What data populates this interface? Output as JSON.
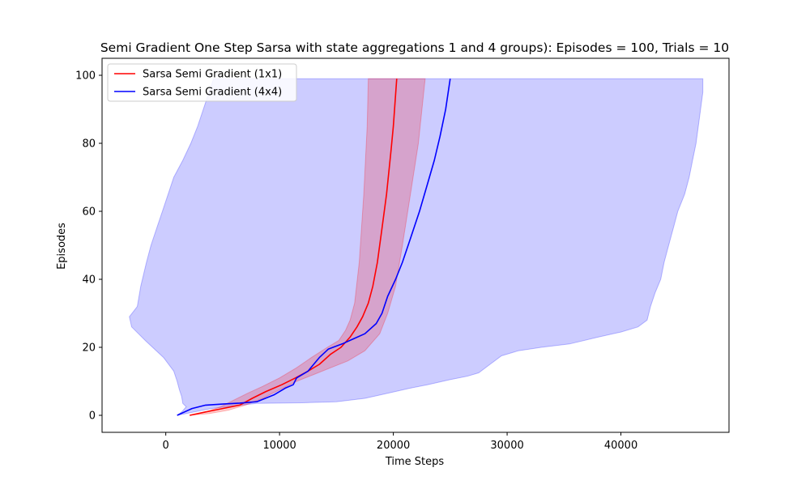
{
  "chart_data": {
    "type": "line",
    "title": "Semi Gradient One Step Sarsa with state aggregations 1 and 4 groups): Episodes = 100, Trials = 10",
    "xlabel": "Time Steps",
    "ylabel": "Episodes",
    "xlim": [
      -5600,
      49500
    ],
    "ylim": [
      -5,
      105
    ],
    "xticks": [
      0,
      10000,
      20000,
      30000,
      40000
    ],
    "yticks": [
      0,
      20,
      40,
      60,
      80,
      100
    ],
    "grid": false,
    "legend_position": "upper-left",
    "series": [
      {
        "name": "Sarsa Semi Gradient (1x1)",
        "color": "#ff0000",
        "band_color": "#ff0000",
        "line": [
          [
            2100,
            0
          ],
          [
            3500,
            1
          ],
          [
            5000,
            2
          ],
          [
            6500,
            3
          ],
          [
            7600,
            5
          ],
          [
            8800,
            7
          ],
          [
            10200,
            9
          ],
          [
            11400,
            11
          ],
          [
            12500,
            13
          ],
          [
            13500,
            15
          ],
          [
            14500,
            18
          ],
          [
            15400,
            20
          ],
          [
            16200,
            23
          ],
          [
            16800,
            26
          ],
          [
            17300,
            29
          ],
          [
            17800,
            33
          ],
          [
            18200,
            38
          ],
          [
            18600,
            45
          ],
          [
            19000,
            55
          ],
          [
            19400,
            65
          ],
          [
            19800,
            78
          ],
          [
            20000,
            85
          ],
          [
            20300,
            99
          ]
        ],
        "band_upper": [
          [
            2100,
            0
          ],
          [
            3500,
            1
          ],
          [
            4800,
            2.5
          ],
          [
            6000,
            4.5
          ],
          [
            7200,
            6.5
          ],
          [
            8500,
            8.5
          ],
          [
            10000,
            11
          ],
          [
            11500,
            14
          ],
          [
            12800,
            17
          ],
          [
            14200,
            20
          ],
          [
            15200,
            22
          ],
          [
            15800,
            25
          ],
          [
            16200,
            28
          ],
          [
            16600,
            33
          ],
          [
            17000,
            45
          ],
          [
            17400,
            65
          ],
          [
            17700,
            85
          ],
          [
            17800,
            99
          ]
        ],
        "band_lower": [
          [
            2100,
            0
          ],
          [
            3800,
            0.5
          ],
          [
            5500,
            1.5
          ],
          [
            7000,
            3
          ],
          [
            8500,
            5
          ],
          [
            10000,
            7.5
          ],
          [
            11500,
            10
          ],
          [
            13000,
            12
          ],
          [
            14500,
            14
          ],
          [
            16000,
            16
          ],
          [
            17500,
            19
          ],
          [
            18800,
            24
          ],
          [
            19500,
            30
          ],
          [
            20200,
            38
          ],
          [
            20800,
            50
          ],
          [
            21500,
            65
          ],
          [
            22200,
            80
          ],
          [
            22800,
            99
          ]
        ]
      },
      {
        "name": "Sarsa Semi Gradient (4x4)",
        "color": "#0000ff",
        "band_color": "#0000ff",
        "line": [
          [
            1000,
            0
          ],
          [
            2300,
            2
          ],
          [
            3500,
            3
          ],
          [
            5000,
            3.3
          ],
          [
            6500,
            3.6
          ],
          [
            8000,
            4
          ],
          [
            9500,
            6
          ],
          [
            10500,
            8
          ],
          [
            11200,
            9
          ],
          [
            11500,
            11
          ],
          [
            12500,
            13
          ],
          [
            13500,
            17
          ],
          [
            14300,
            19.5
          ],
          [
            15500,
            21
          ],
          [
            16500,
            22.5
          ],
          [
            17500,
            24
          ],
          [
            18500,
            27
          ],
          [
            19000,
            30
          ],
          [
            19500,
            35
          ],
          [
            20200,
            40
          ],
          [
            20800,
            45
          ],
          [
            21500,
            52
          ],
          [
            22300,
            60
          ],
          [
            23000,
            68
          ],
          [
            23600,
            75
          ],
          [
            24100,
            82
          ],
          [
            24600,
            90
          ],
          [
            25000,
            99
          ]
        ],
        "band_upper": [
          [
            1000,
            0
          ],
          [
            1400,
            1
          ],
          [
            1800,
            2.5
          ],
          [
            1500,
            3.5
          ],
          [
            1400,
            5.5
          ],
          [
            1200,
            7.5
          ],
          [
            1000,
            10
          ],
          [
            700,
            13
          ],
          [
            -200,
            17
          ],
          [
            -1800,
            22
          ],
          [
            -3000,
            26
          ],
          [
            -3200,
            29
          ],
          [
            -2500,
            32
          ],
          [
            -2200,
            38
          ],
          [
            -1700,
            45
          ],
          [
            -1300,
            50
          ],
          [
            -800,
            55
          ],
          [
            -300,
            60
          ],
          [
            200,
            65
          ],
          [
            700,
            70
          ],
          [
            1500,
            75
          ],
          [
            2200,
            80
          ],
          [
            2800,
            85
          ],
          [
            3300,
            90
          ],
          [
            3800,
            95
          ],
          [
            4200,
            99
          ]
        ],
        "band_lower": [
          [
            1000,
            0
          ],
          [
            4000,
            2
          ],
          [
            8000,
            3.5
          ],
          [
            12000,
            3.7
          ],
          [
            15000,
            4
          ],
          [
            17500,
            5
          ],
          [
            19500,
            6.5
          ],
          [
            21500,
            8
          ],
          [
            23000,
            9
          ],
          [
            25000,
            10.5
          ],
          [
            26500,
            11.5
          ],
          [
            27500,
            12.5
          ],
          [
            28500,
            15
          ],
          [
            29500,
            17.5
          ],
          [
            31000,
            19
          ],
          [
            33000,
            20
          ],
          [
            35500,
            21
          ],
          [
            38000,
            23
          ],
          [
            40000,
            24.5
          ],
          [
            41500,
            26
          ],
          [
            42300,
            28
          ],
          [
            42600,
            32
          ],
          [
            43000,
            36
          ],
          [
            43500,
            40
          ],
          [
            43800,
            45
          ],
          [
            44200,
            50
          ],
          [
            44600,
            55
          ],
          [
            45000,
            60
          ],
          [
            45600,
            65
          ],
          [
            46000,
            70
          ],
          [
            46300,
            75
          ],
          [
            46600,
            80
          ],
          [
            46800,
            85
          ],
          [
            47000,
            90
          ],
          [
            47200,
            95
          ],
          [
            47200,
            99
          ]
        ]
      }
    ]
  }
}
